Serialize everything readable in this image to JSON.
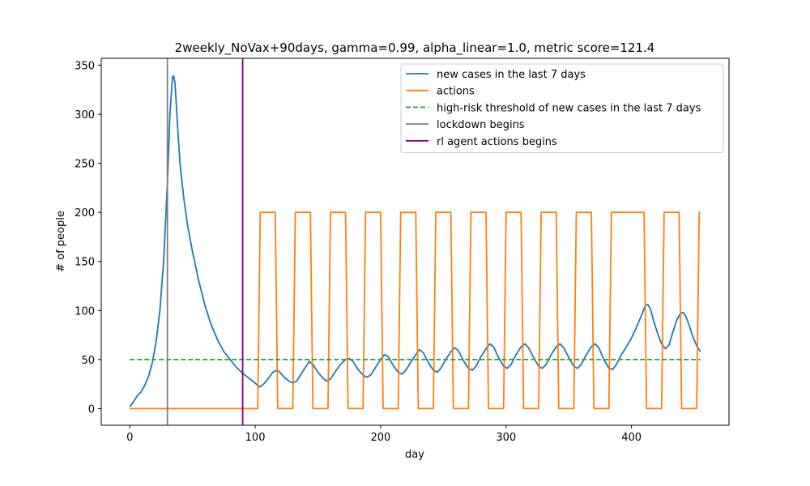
{
  "chart_data": {
    "type": "line",
    "title": "2weekly_NoVax+90days, gamma=0.99, alpha_linear=1.0, metric score=121.4",
    "xlabel": "day",
    "ylabel": "# of people",
    "xlim": [
      -22.75,
      477.75
    ],
    "ylim": [
      -17,
      357
    ],
    "xticks": [
      0,
      100,
      200,
      300,
      400
    ],
    "yticks": [
      0,
      50,
      100,
      150,
      200,
      250,
      300,
      350
    ],
    "legend_position": "upper right",
    "grid": false,
    "series": [
      {
        "name": "new cases in the last 7 days",
        "kind": "line",
        "color": "#1f77b4",
        "points": [
          [
            0,
            2
          ],
          [
            3,
            7
          ],
          [
            6,
            13
          ],
          [
            9,
            17
          ],
          [
            12,
            24
          ],
          [
            15,
            33
          ],
          [
            18,
            47
          ],
          [
            21,
            68
          ],
          [
            24,
            100
          ],
          [
            27,
            150
          ],
          [
            30,
            230
          ],
          [
            32,
            300
          ],
          [
            34,
            338
          ],
          [
            35,
            339
          ],
          [
            36,
            332
          ],
          [
            38,
            290
          ],
          [
            40,
            250
          ],
          [
            43,
            215
          ],
          [
            46,
            187
          ],
          [
            50,
            160
          ],
          [
            55,
            130
          ],
          [
            60,
            105
          ],
          [
            65,
            85
          ],
          [
            70,
            70
          ],
          [
            75,
            58
          ],
          [
            80,
            50
          ],
          [
            85,
            42
          ],
          [
            90,
            36
          ],
          [
            95,
            31
          ],
          [
            100,
            26
          ],
          [
            103,
            22
          ],
          [
            106,
            24
          ],
          [
            110,
            30
          ],
          [
            114,
            37
          ],
          [
            117,
            39
          ],
          [
            119,
            38
          ],
          [
            123,
            32
          ],
          [
            127,
            28
          ],
          [
            130,
            26
          ],
          [
            133,
            28
          ],
          [
            136,
            34
          ],
          [
            140,
            42
          ],
          [
            143,
            48
          ],
          [
            146,
            45
          ],
          [
            150,
            37
          ],
          [
            154,
            31
          ],
          [
            157,
            28
          ],
          [
            160,
            30
          ],
          [
            164,
            38
          ],
          [
            168,
            45
          ],
          [
            172,
            50
          ],
          [
            175,
            51
          ],
          [
            178,
            48
          ],
          [
            182,
            40
          ],
          [
            186,
            34
          ],
          [
            189,
            32
          ],
          [
            192,
            34
          ],
          [
            196,
            42
          ],
          [
            200,
            50
          ],
          [
            203,
            55
          ],
          [
            206,
            53
          ],
          [
            210,
            44
          ],
          [
            214,
            37
          ],
          [
            217,
            35
          ],
          [
            220,
            39
          ],
          [
            224,
            47
          ],
          [
            228,
            55
          ],
          [
            231,
            60
          ],
          [
            234,
            57
          ],
          [
            238,
            47
          ],
          [
            242,
            39
          ],
          [
            245,
            37
          ],
          [
            248,
            41
          ],
          [
            252,
            50
          ],
          [
            256,
            58
          ],
          [
            259,
            62
          ],
          [
            262,
            59
          ],
          [
            266,
            49
          ],
          [
            270,
            41
          ],
          [
            273,
            39
          ],
          [
            276,
            43
          ],
          [
            280,
            53
          ],
          [
            284,
            61
          ],
          [
            287,
            66
          ],
          [
            290,
            63
          ],
          [
            294,
            52
          ],
          [
            298,
            43
          ],
          [
            301,
            41
          ],
          [
            304,
            45
          ],
          [
            308,
            55
          ],
          [
            312,
            63
          ],
          [
            315,
            66
          ],
          [
            318,
            62
          ],
          [
            322,
            52
          ],
          [
            326,
            43
          ],
          [
            329,
            41
          ],
          [
            332,
            45
          ],
          [
            336,
            55
          ],
          [
            340,
            63
          ],
          [
            343,
            66
          ],
          [
            346,
            62
          ],
          [
            350,
            52
          ],
          [
            354,
            43
          ],
          [
            357,
            41
          ],
          [
            360,
            45
          ],
          [
            364,
            55
          ],
          [
            368,
            63
          ],
          [
            371,
            66
          ],
          [
            374,
            62
          ],
          [
            378,
            50
          ],
          [
            382,
            41
          ],
          [
            385,
            40
          ],
          [
            388,
            45
          ],
          [
            392,
            55
          ],
          [
            396,
            63
          ],
          [
            400,
            72
          ],
          [
            404,
            83
          ],
          [
            408,
            95
          ],
          [
            411,
            105
          ],
          [
            413,
            106
          ],
          [
            415,
            102
          ],
          [
            418,
            88
          ],
          [
            421,
            76
          ],
          [
            424,
            66
          ],
          [
            427,
            61
          ],
          [
            430,
            65
          ],
          [
            433,
            78
          ],
          [
            436,
            90
          ],
          [
            439,
            97
          ],
          [
            441,
            98
          ],
          [
            443,
            95
          ],
          [
            446,
            85
          ],
          [
            449,
            73
          ],
          [
            452,
            64
          ],
          [
            455,
            58
          ]
        ]
      },
      {
        "name": "actions",
        "kind": "line",
        "color": "#ff7f0e",
        "points": [
          [
            0,
            0
          ],
          [
            102,
            0
          ],
          [
            104,
            200
          ],
          [
            116,
            200
          ],
          [
            118,
            0
          ],
          [
            130,
            0
          ],
          [
            132,
            200
          ],
          [
            144,
            200
          ],
          [
            146,
            0
          ],
          [
            158,
            0
          ],
          [
            160,
            200
          ],
          [
            172,
            200
          ],
          [
            174,
            0
          ],
          [
            186,
            0
          ],
          [
            188,
            200
          ],
          [
            200,
            200
          ],
          [
            202,
            0
          ],
          [
            214,
            0
          ],
          [
            216,
            200
          ],
          [
            228,
            200
          ],
          [
            230,
            0
          ],
          [
            242,
            0
          ],
          [
            244,
            200
          ],
          [
            256,
            200
          ],
          [
            258,
            0
          ],
          [
            270,
            0
          ],
          [
            272,
            200
          ],
          [
            284,
            200
          ],
          [
            286,
            0
          ],
          [
            298,
            0
          ],
          [
            300,
            200
          ],
          [
            312,
            200
          ],
          [
            314,
            0
          ],
          [
            326,
            0
          ],
          [
            328,
            200
          ],
          [
            340,
            200
          ],
          [
            342,
            0
          ],
          [
            354,
            0
          ],
          [
            356,
            200
          ],
          [
            368,
            200
          ],
          [
            370,
            0
          ],
          [
            382,
            0
          ],
          [
            384,
            200
          ],
          [
            410,
            200
          ],
          [
            412,
            0
          ],
          [
            424,
            0
          ],
          [
            426,
            200
          ],
          [
            438,
            200
          ],
          [
            440,
            0
          ],
          [
            452,
            0
          ],
          [
            454,
            200
          ],
          [
            455,
            200
          ]
        ]
      },
      {
        "name": "high-risk threshold of new cases in the last 7 days",
        "kind": "hline",
        "color": "#2ca02c",
        "dash": true,
        "y": 50,
        "x_range": [
          0,
          455
        ]
      },
      {
        "name": "lockdown begins",
        "kind": "vline",
        "color": "#7f7f7f",
        "x": 30
      },
      {
        "name": "rl agent actions begins",
        "kind": "vline",
        "color": "#800080",
        "x": 90
      }
    ]
  }
}
